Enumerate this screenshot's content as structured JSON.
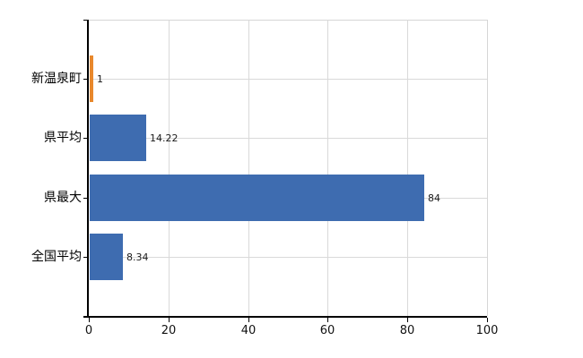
{
  "chart_data": {
    "type": "bar",
    "orientation": "horizontal",
    "title": "",
    "categories": [
      "新温泉町",
      "県平均",
      "県最大",
      "全国平均"
    ],
    "values": [
      1,
      14.22,
      84,
      8.34
    ],
    "value_labels": [
      "1",
      "14.22",
      "84",
      "8.34"
    ],
    "bar_colors": [
      "#e8882c",
      "#3e6cb0",
      "#3e6cb0",
      "#3e6cb0"
    ],
    "xlim": [
      0,
      100
    ],
    "x_ticks": [
      0,
      20,
      40,
      60,
      80,
      100
    ],
    "x_tick_labels": [
      "0",
      "20",
      "40",
      "60",
      "80",
      "100"
    ],
    "grid": true,
    "legend": "none",
    "colors": {
      "highlight_bar": "#e8882c",
      "default_bar": "#3e6cb0",
      "axis": "#000000",
      "gridline": "#d9d9d9",
      "plot_border": "#d6d6d6",
      "background": "#ffffff",
      "text": "#111111"
    }
  }
}
